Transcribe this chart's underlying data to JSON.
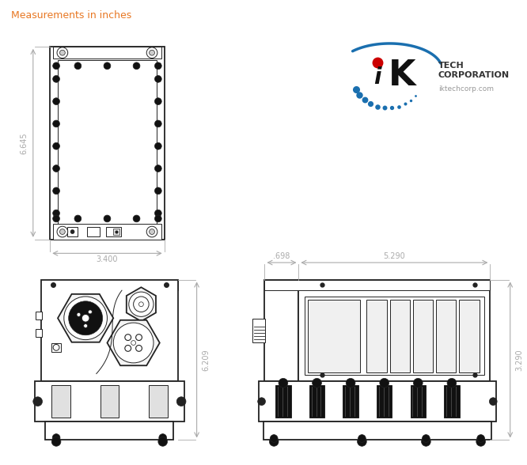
{
  "bg_color": "#ffffff",
  "line_color": "#222222",
  "dim_color": "#aaaaaa",
  "text_color_orange": "#e87722",
  "title_text": "Measurements in inches",
  "dim_6645": "6.645",
  "dim_3400": "3.400",
  "dim_6209": "6.209",
  "dim_698": ".698",
  "dim_5290": "5.290",
  "dim_3290": "3.290",
  "logo_dot_red": "#cc0000",
  "logo_dots_blue": "#1a6faf",
  "logo_arc_blue": "#1a6faf",
  "logo_text_color": "#333333",
  "logo_url_color": "#999999"
}
